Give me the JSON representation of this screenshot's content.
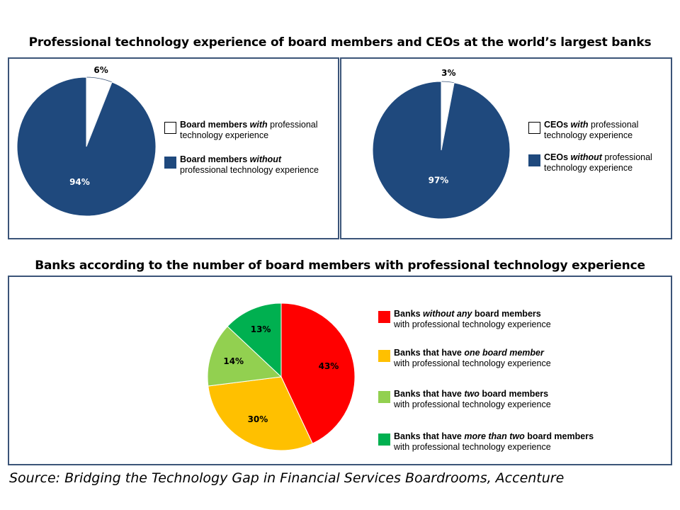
{
  "chart_data": [
    {
      "type": "pie",
      "title": "Professional technology experience of board members and CEOs at the world’s largest banks",
      "slices": [
        {
          "label": "6%",
          "value": 6,
          "color": "#ffffff",
          "label_color": "#000000"
        },
        {
          "label": "94%",
          "value": 94,
          "color": "#1f497d",
          "label_color": "#ffffff"
        }
      ],
      "legend": [
        {
          "parts": [
            {
              "t": "Board members ",
              "b": true
            },
            {
              "t": "with",
              "b": true,
              "i": true
            },
            {
              "t": " professional"
            }
          ],
          "line2": "technology experience",
          "color": "#ffffff"
        },
        {
          "parts": [
            {
              "t": "Board members ",
              "b": true
            },
            {
              "t": "without",
              "b": true,
              "i": true
            }
          ],
          "line2": "professional technology experience",
          "color": "#1f497d"
        }
      ]
    },
    {
      "type": "pie",
      "slices": [
        {
          "label": "3%",
          "value": 3,
          "color": "#ffffff",
          "label_color": "#000000"
        },
        {
          "label": "97%",
          "value": 97,
          "color": "#1f497d",
          "label_color": "#ffffff"
        }
      ],
      "legend": [
        {
          "parts": [
            {
              "t": "CEOs ",
              "b": true
            },
            {
              "t": "with",
              "b": true,
              "i": true
            },
            {
              "t": " professional"
            }
          ],
          "line2": "technology experience",
          "color": "#ffffff"
        },
        {
          "parts": [
            {
              "t": "CEOs ",
              "b": true
            },
            {
              "t": "without",
              "b": true,
              "i": true
            },
            {
              "t": " professional"
            }
          ],
          "line2": "technology experience",
          "color": "#1f497d"
        }
      ]
    },
    {
      "type": "pie",
      "title": "Banks according to the number of board members with professional technology experience",
      "slices": [
        {
          "label": "43%",
          "value": 43,
          "color": "#ff0000",
          "label_color": "#000000"
        },
        {
          "label": "30%",
          "value": 30,
          "color": "#ffc000",
          "label_color": "#000000"
        },
        {
          "label": "14%",
          "value": 14,
          "color": "#92d050",
          "label_color": "#000000"
        },
        {
          "label": "13%",
          "value": 13,
          "color": "#00b050",
          "label_color": "#000000"
        }
      ],
      "legend": [
        {
          "parts": [
            {
              "t": "Banks ",
              "b": true
            },
            {
              "t": "without any",
              "b": true,
              "i": true
            },
            {
              "t": " board members",
              "b": true
            }
          ],
          "line2": "with professional technology experience",
          "color": "#ff0000"
        },
        {
          "parts": [
            {
              "t": "Banks that have ",
              "b": true
            },
            {
              "t": "one board member",
              "b": true,
              "i": true
            }
          ],
          "line2": "with professional technology experience",
          "color": "#ffc000"
        },
        {
          "parts": [
            {
              "t": "Banks that have ",
              "b": true
            },
            {
              "t": "two",
              "b": true,
              "i": true
            },
            {
              "t": " board members",
              "b": true
            }
          ],
          "line2": "with professional technology experience",
          "color": "#92d050"
        },
        {
          "parts": [
            {
              "t": "Banks that have ",
              "b": true
            },
            {
              "t": "more than two",
              "b": true,
              "i": true
            },
            {
              "t": " board members",
              "b": true
            }
          ],
          "line2": "with professional technology experience",
          "color": "#00b050"
        }
      ]
    }
  ],
  "source": "Source: Bridging the Technology Gap in Financial Services Boardrooms, Accenture"
}
